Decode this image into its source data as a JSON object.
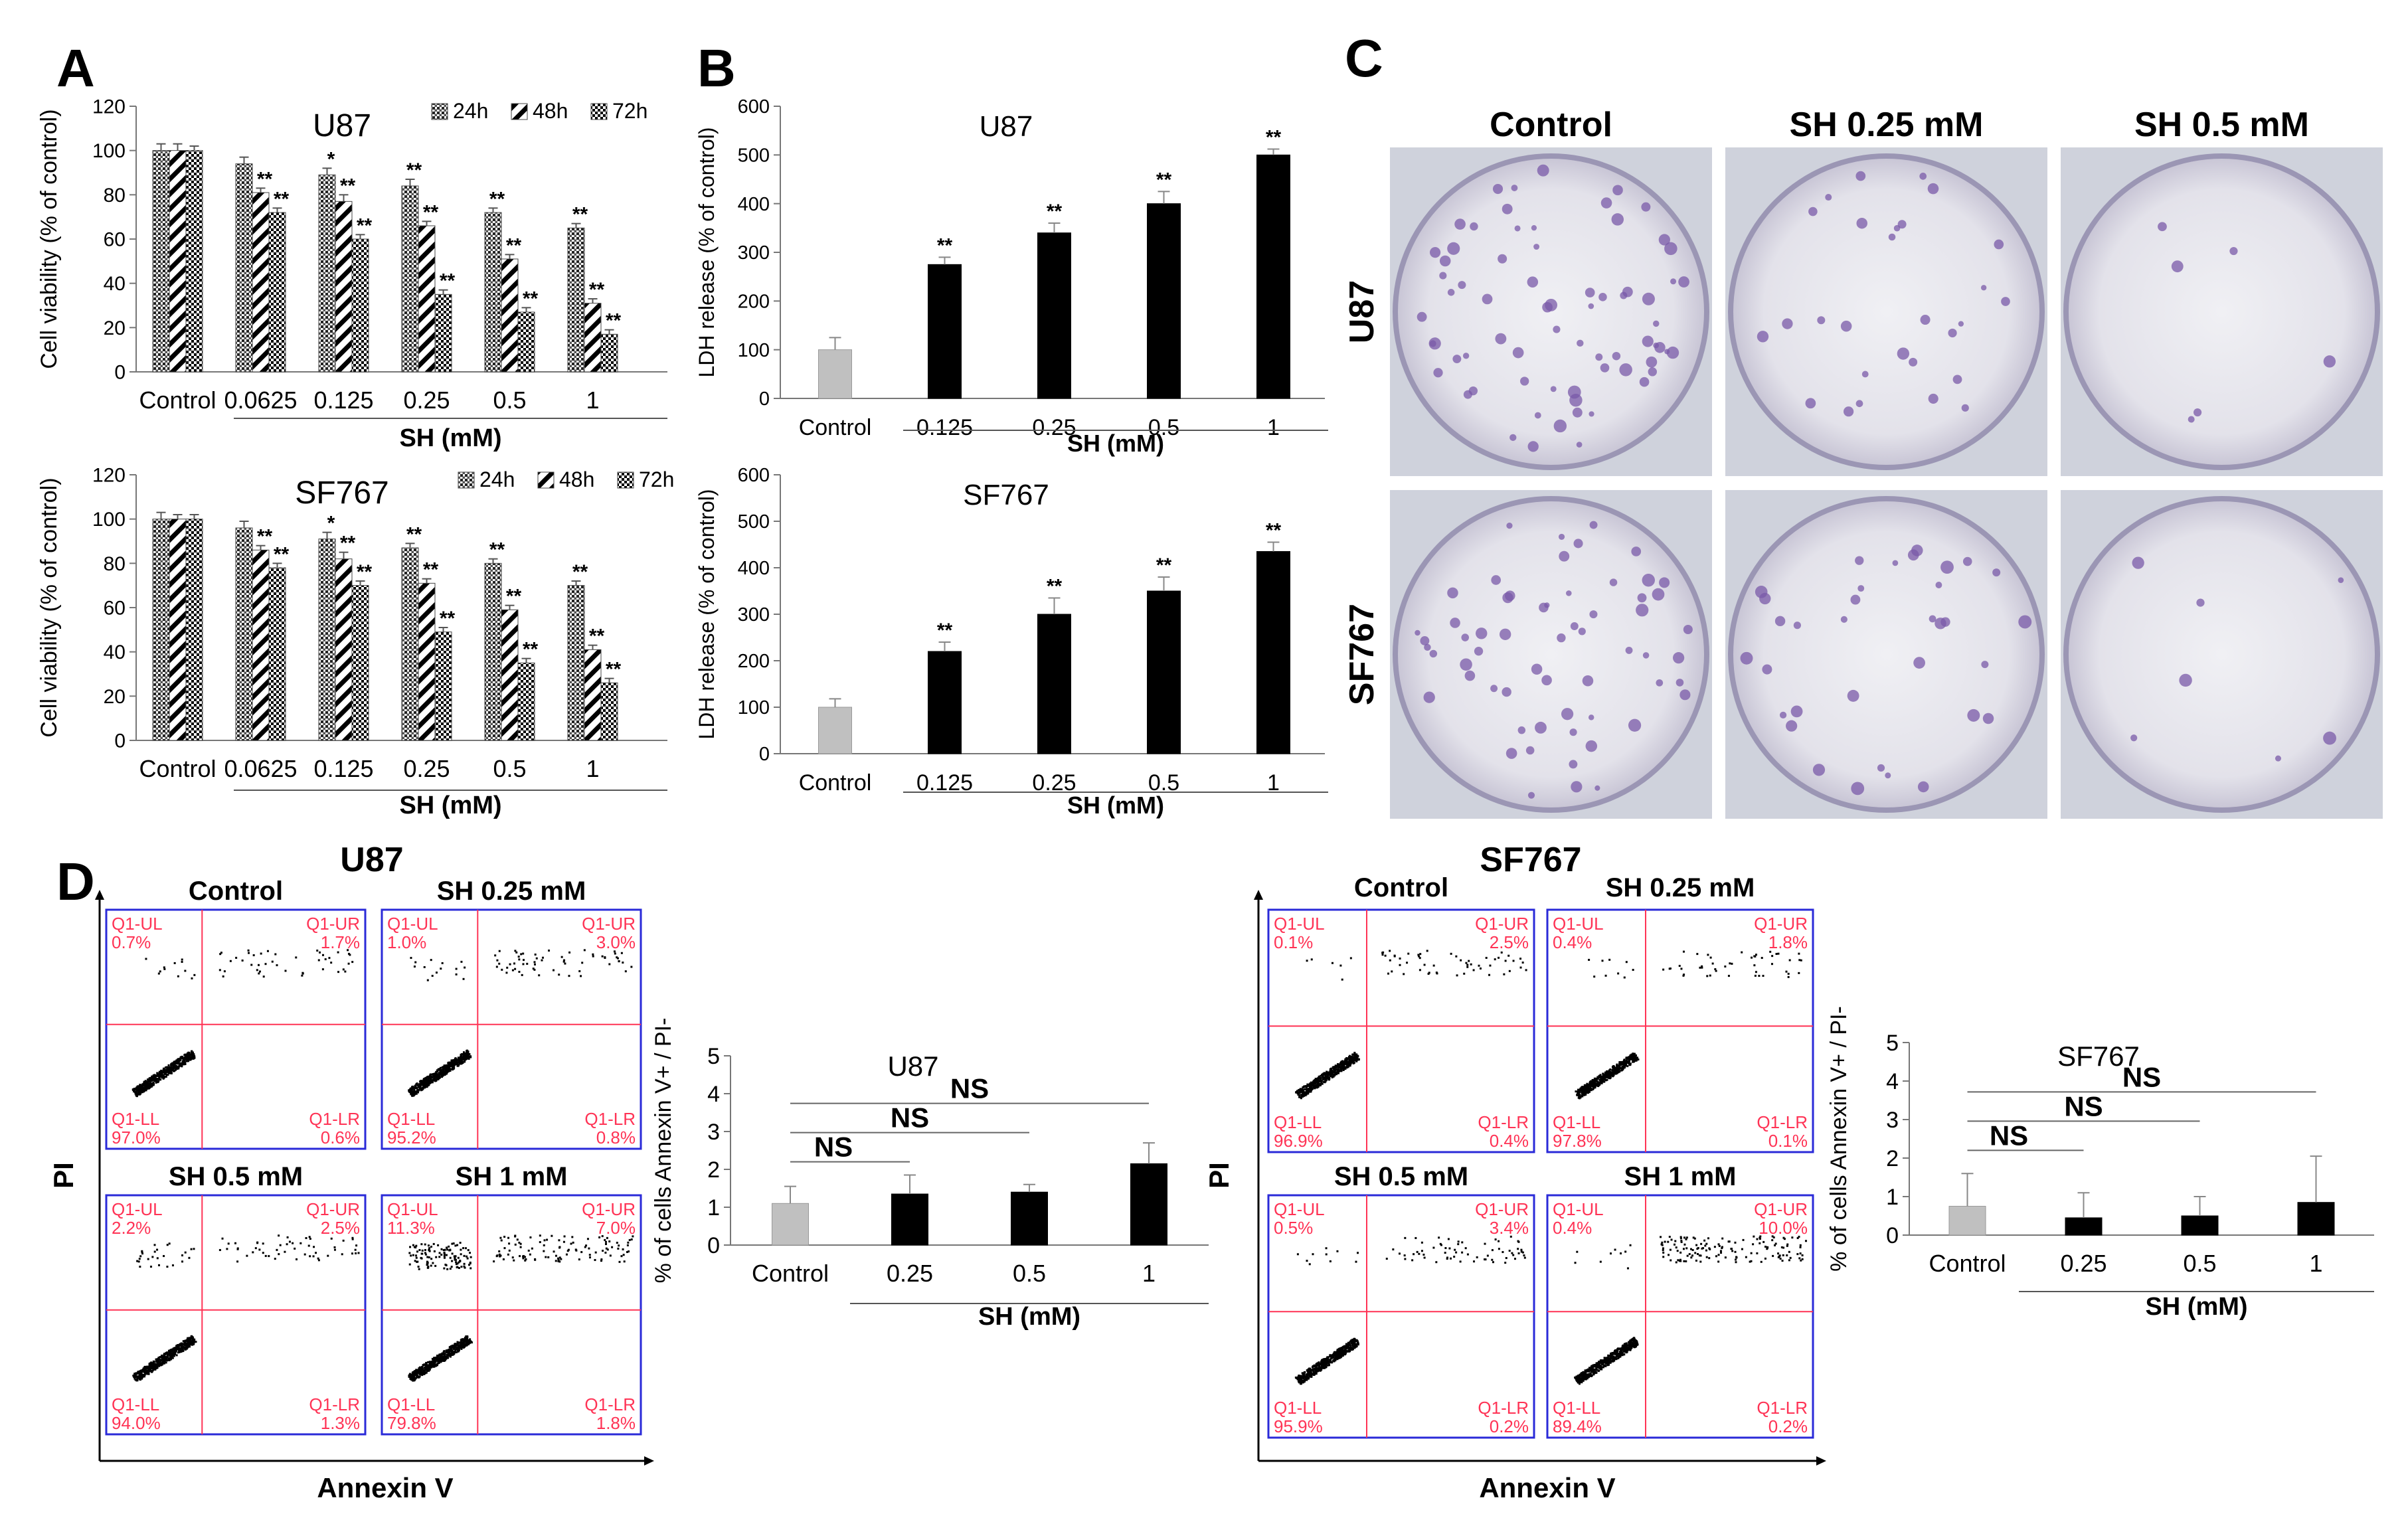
{
  "panel_letters": {
    "a": "A",
    "b": "B",
    "c": "C",
    "d": "D"
  },
  "colors": {
    "gray_bar": "#c0c0c0",
    "black_bar": "#000000",
    "quadrant_red": "#ff3355",
    "plot_frame": "#2a2ad8",
    "plate_purple": "#7a5aa8"
  },
  "chart_data": [
    {
      "id": "A_U87",
      "type": "bar",
      "title": "U87",
      "ylabel": "Cell viability (% of control)",
      "xlabel": "SH (mM)",
      "ylim": [
        0,
        120
      ],
      "yticks": [
        0,
        20,
        40,
        60,
        80,
        100,
        120
      ],
      "categories": [
        "Control",
        "0.0625",
        "0.125",
        "0.25",
        "0.5",
        "1"
      ],
      "legend": [
        "24h",
        "48h",
        "72h"
      ],
      "series": [
        {
          "name": "24h",
          "pattern": "dots",
          "values": [
            100,
            94,
            89,
            84,
            72,
            65
          ],
          "errors": [
            3,
            3,
            3,
            3,
            2,
            2
          ],
          "stars": [
            "",
            "",
            "*",
            "**",
            "**",
            "**"
          ]
        },
        {
          "name": "48h",
          "pattern": "diag",
          "values": [
            100,
            81,
            77,
            66,
            51,
            31
          ],
          "errors": [
            3,
            2,
            3,
            2,
            2,
            2
          ],
          "stars": [
            "",
            "**",
            "**",
            "**",
            "**",
            "**"
          ]
        },
        {
          "name": "72h",
          "pattern": "check",
          "values": [
            100,
            72,
            60,
            35,
            27,
            17
          ],
          "errors": [
            2,
            2,
            2,
            2,
            2,
            2
          ],
          "stars": [
            "",
            "**",
            "**",
            "**",
            "**",
            "**"
          ]
        }
      ]
    },
    {
      "id": "A_SF767",
      "type": "bar",
      "title": "SF767",
      "ylabel": "Cell viability (% of control)",
      "xlabel": "SH (mM)",
      "ylim": [
        0,
        120
      ],
      "yticks": [
        0,
        20,
        40,
        60,
        80,
        100,
        120
      ],
      "categories": [
        "Control",
        "0.0625",
        "0.125",
        "0.25",
        "0.5",
        "1"
      ],
      "legend": [
        "24h",
        "48h",
        "72h"
      ],
      "series": [
        {
          "name": "24h",
          "pattern": "dots",
          "values": [
            100,
            96,
            91,
            87,
            80,
            70
          ],
          "errors": [
            3,
            3,
            3,
            2,
            2,
            2
          ],
          "stars": [
            "",
            "",
            "*",
            "**",
            "**",
            "**"
          ]
        },
        {
          "name": "48h",
          "pattern": "diag",
          "values": [
            100,
            86,
            82,
            71,
            59,
            41
          ],
          "errors": [
            2,
            2,
            3,
            2,
            2,
            2
          ],
          "stars": [
            "",
            "**",
            "**",
            "**",
            "**",
            "**"
          ]
        },
        {
          "name": "72h",
          "pattern": "check",
          "values": [
            100,
            78,
            70,
            49,
            35,
            26
          ],
          "errors": [
            2,
            2,
            2,
            2,
            2,
            2
          ],
          "stars": [
            "",
            "**",
            "**",
            "**",
            "**",
            "**"
          ]
        }
      ]
    },
    {
      "id": "B_U87",
      "type": "bar",
      "title": "U87",
      "ylabel": "LDH release (% of control)",
      "xlabel": "SH (mM)",
      "ylim": [
        0,
        600
      ],
      "yticks": [
        0,
        100,
        200,
        300,
        400,
        500,
        600
      ],
      "categories": [
        "Control",
        "0.125",
        "0.25",
        "0.5",
        "1"
      ],
      "values": [
        100,
        275,
        340,
        400,
        500
      ],
      "errors": [
        25,
        15,
        20,
        25,
        12
      ],
      "stars": [
        "",
        "**",
        "**",
        "**",
        "**"
      ]
    },
    {
      "id": "B_SF767",
      "type": "bar",
      "title": "SF767",
      "ylabel": "LDH release (% of control)",
      "xlabel": "SH (mM)",
      "ylim": [
        0,
        600
      ],
      "yticks": [
        0,
        100,
        200,
        300,
        400,
        500,
        600
      ],
      "categories": [
        "Control",
        "0.125",
        "0.25",
        "0.5",
        "1"
      ],
      "values": [
        100,
        220,
        300,
        350,
        435
      ],
      "errors": [
        18,
        20,
        35,
        30,
        20
      ],
      "stars": [
        "",
        "**",
        "**",
        "**",
        "**"
      ]
    },
    {
      "id": "D_U87_bar",
      "type": "bar",
      "title": "U87",
      "ylabel": "% of cells Annexin V+ / PI-",
      "xlabel": "SH (mM)",
      "ylim": [
        0,
        5
      ],
      "yticks": [
        0,
        1,
        2,
        3,
        4,
        5
      ],
      "categories": [
        "Control",
        "0.25",
        "0.5",
        "1"
      ],
      "values": [
        1.1,
        1.35,
        1.4,
        2.15
      ],
      "errors": [
        0.45,
        0.5,
        0.2,
        0.55
      ],
      "significance": [
        {
          "from": 0,
          "to": 1,
          "label": "NS"
        },
        {
          "from": 0,
          "to": 2,
          "label": "NS"
        },
        {
          "from": 0,
          "to": 3,
          "label": "NS"
        }
      ]
    },
    {
      "id": "D_SF767_bar",
      "type": "bar",
      "title": "SF767",
      "ylabel": "% of cells Annexin V+ / PI-",
      "xlabel": "SH (mM)",
      "ylim": [
        0,
        5
      ],
      "yticks": [
        0,
        1,
        2,
        3,
        4,
        5
      ],
      "categories": [
        "Control",
        "0.25",
        "0.5",
        "1"
      ],
      "values": [
        0.75,
        0.45,
        0.5,
        0.85
      ],
      "errors": [
        0.85,
        0.65,
        0.5,
        1.2
      ],
      "significance": [
        {
          "from": 0,
          "to": 1,
          "label": "NS"
        },
        {
          "from": 0,
          "to": 2,
          "label": "NS"
        },
        {
          "from": 0,
          "to": 3,
          "label": "NS"
        }
      ]
    }
  ],
  "colony_assay": {
    "columns": [
      "Control",
      "SH 0.25 mM",
      "SH 0.5 mM"
    ],
    "rows": [
      "U87",
      "SF767"
    ],
    "colonies": [
      [
        70,
        28,
        6
      ],
      [
        60,
        34,
        7
      ]
    ]
  },
  "flow_cytometry": {
    "x_axis": "Annexin V",
    "y_axis": "PI",
    "groups": [
      {
        "cell_line": "U87",
        "plots": [
          {
            "title": "Control",
            "quadrants": {
              "ul": {
                "label": "Q1-UL",
                "pct": "0.7%"
              },
              "ur": {
                "label": "Q1-UR",
                "pct": "1.7%"
              },
              "ll": {
                "label": "Q1-LL",
                "pct": "97.0%"
              },
              "lr": {
                "label": "Q1-LR",
                "pct": "0.6%"
              }
            }
          },
          {
            "title": "SH 0.25 mM",
            "quadrants": {
              "ul": {
                "label": "Q1-UL",
                "pct": "1.0%"
              },
              "ur": {
                "label": "Q1-UR",
                "pct": "3.0%"
              },
              "ll": {
                "label": "Q1-LL",
                "pct": "95.2%"
              },
              "lr": {
                "label": "Q1-LR",
                "pct": "0.8%"
              }
            }
          },
          {
            "title": "SH 0.5 mM",
            "quadrants": {
              "ul": {
                "label": "Q1-UL",
                "pct": "2.2%"
              },
              "ur": {
                "label": "Q1-UR",
                "pct": "2.5%"
              },
              "ll": {
                "label": "Q1-LL",
                "pct": "94.0%"
              },
              "lr": {
                "label": "Q1-LR",
                "pct": "1.3%"
              }
            }
          },
          {
            "title": "SH 1 mM",
            "quadrants": {
              "ul": {
                "label": "Q1-UL",
                "pct": "11.3%"
              },
              "ur": {
                "label": "Q1-UR",
                "pct": "7.0%"
              },
              "ll": {
                "label": "Q1-LL",
                "pct": "79.8%"
              },
              "lr": {
                "label": "Q1-LR",
                "pct": "1.8%"
              }
            }
          }
        ]
      },
      {
        "cell_line": "SF767",
        "plots": [
          {
            "title": "Control",
            "quadrants": {
              "ul": {
                "label": "Q1-UL",
                "pct": "0.1%"
              },
              "ur": {
                "label": "Q1-UR",
                "pct": "2.5%"
              },
              "ll": {
                "label": "Q1-LL",
                "pct": "96.9%"
              },
              "lr": {
                "label": "Q1-LR",
                "pct": "0.4%"
              }
            }
          },
          {
            "title": "SH 0.25 mM",
            "quadrants": {
              "ul": {
                "label": "Q1-UL",
                "pct": "0.4%"
              },
              "ur": {
                "label": "Q1-UR",
                "pct": "1.8%"
              },
              "ll": {
                "label": "Q1-LL",
                "pct": "97.8%"
              },
              "lr": {
                "label": "Q1-LR",
                "pct": "0.1%"
              }
            }
          },
          {
            "title": "SH 0.5 mM",
            "quadrants": {
              "ul": {
                "label": "Q1-UL",
                "pct": "0.5%"
              },
              "ur": {
                "label": "Q1-UR",
                "pct": "3.4%"
              },
              "ll": {
                "label": "Q1-LL",
                "pct": "95.9%"
              },
              "lr": {
                "label": "Q1-LR",
                "pct": "0.2%"
              }
            }
          },
          {
            "title": "SH 1 mM",
            "quadrants": {
              "ul": {
                "label": "Q1-UL",
                "pct": "0.4%"
              },
              "ur": {
                "label": "Q1-UR",
                "pct": "10.0%"
              },
              "ll": {
                "label": "Q1-LL",
                "pct": "89.4%"
              },
              "lr": {
                "label": "Q1-LR",
                "pct": "0.2%"
              }
            }
          }
        ]
      }
    ]
  }
}
